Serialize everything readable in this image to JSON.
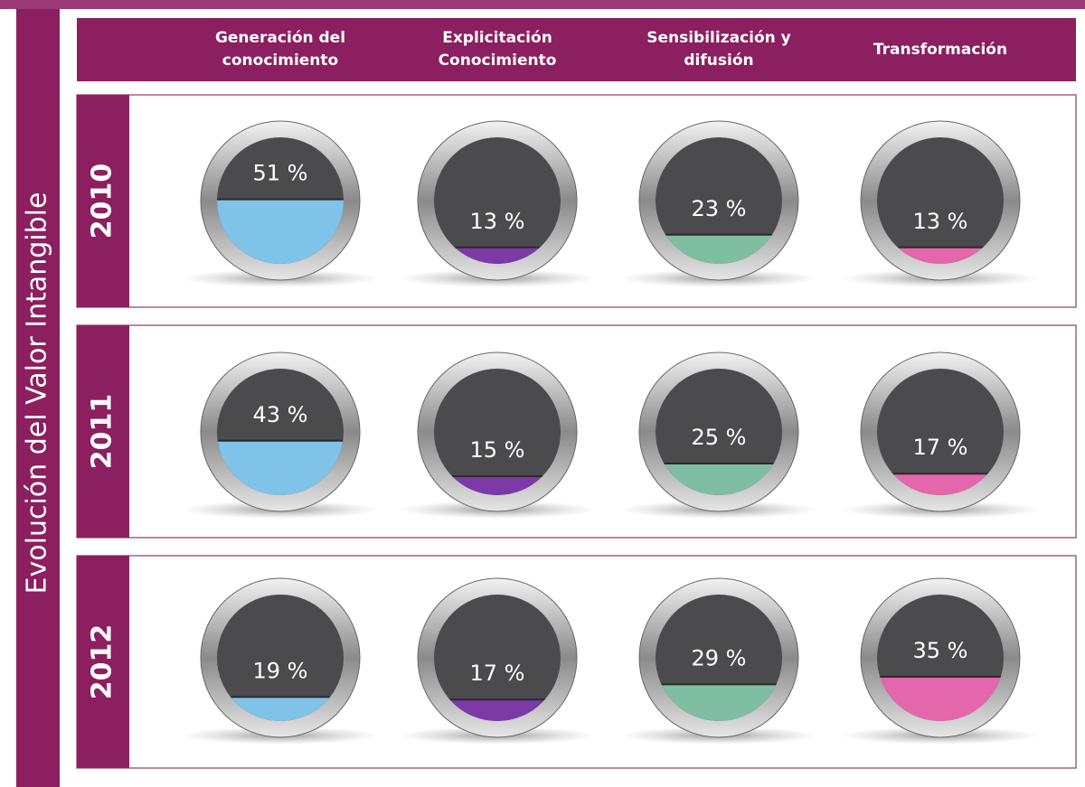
{
  "chart_data": {
    "type": "gauge",
    "title": "Evolución del Valor Intangible",
    "categories": [
      "Generación del conocimiento",
      "Explicitación Conocimiento",
      "Sensibilización y difusión",
      "Transformación"
    ],
    "colors": [
      "#7fc3e8",
      "#7b3aa6",
      "#7fbea3",
      "#e466ab"
    ],
    "ylim": [
      0,
      100
    ],
    "series": [
      {
        "name": "2010",
        "values": [
          51,
          13,
          23,
          13
        ],
        "value_labels": [
          "51 %",
          "13 %",
          "23 %",
          "13 %"
        ]
      },
      {
        "name": "2011",
        "values": [
          43,
          15,
          25,
          17
        ],
        "value_labels": [
          "43 %",
          "15 %",
          "25 %",
          "17 %"
        ]
      },
      {
        "name": "2012",
        "values": [
          19,
          17,
          29,
          35
        ],
        "value_labels": [
          "19 %",
          "17 %",
          "29 %",
          "35 %"
        ]
      }
    ]
  }
}
